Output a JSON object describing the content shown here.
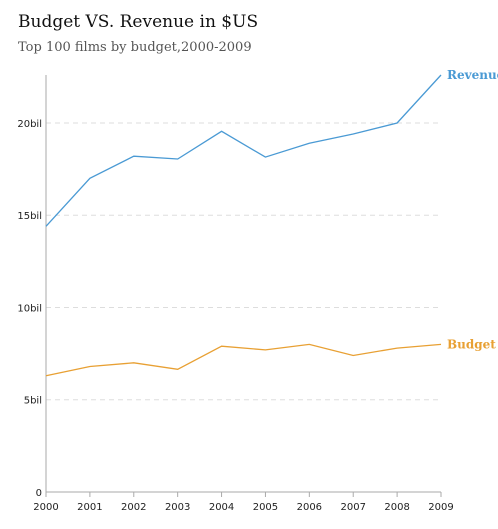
{
  "header": {
    "title": "Budget VS. Revenue in $US",
    "subtitle": "Top 100 films by budget,2000-2009"
  },
  "chart_data": {
    "type": "line",
    "title": "Budget VS. Revenue in $US",
    "subtitle": "Top 100 films by budget,2000-2009",
    "xlabel": "",
    "ylabel": "",
    "x": [
      "2000",
      "2001",
      "2002",
      "2003",
      "2004",
      "2005",
      "2006",
      "2007",
      "2008",
      "2009"
    ],
    "ylim": [
      0,
      22.6
    ],
    "yticks": [
      0,
      5,
      10,
      15,
      20
    ],
    "ytick_labels": [
      "0",
      "5bil",
      "10bil",
      "15bil",
      "20bil"
    ],
    "grid": true,
    "legend": "end-of-line labels",
    "series": [
      {
        "name": "Revenue",
        "color": "#4a9ad4",
        "values": [
          14.4,
          17.0,
          18.2,
          18.05,
          19.55,
          18.15,
          18.9,
          19.4,
          20.0,
          22.6
        ]
      },
      {
        "name": "Budget",
        "color": "#e8a033",
        "values": [
          6.3,
          6.8,
          7.0,
          6.65,
          7.9,
          7.7,
          8.0,
          7.4,
          7.8,
          8.0
        ]
      }
    ]
  }
}
